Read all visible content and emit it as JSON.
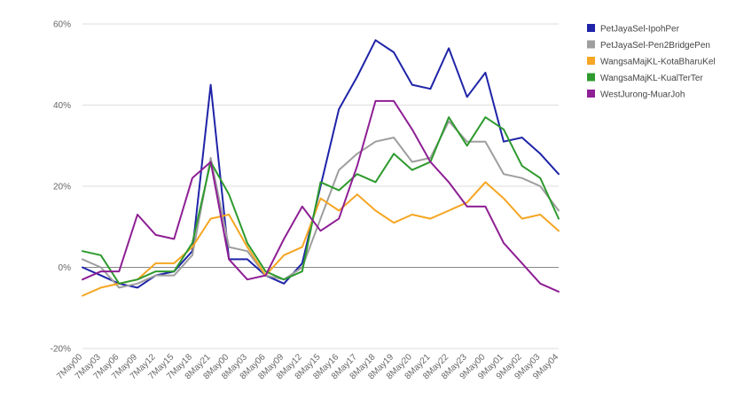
{
  "chart_data": {
    "type": "line",
    "title": "",
    "xlabel": "",
    "ylabel": "",
    "ylim": [
      -20,
      60
    ],
    "yticks": [
      -20,
      0,
      20,
      40,
      60
    ],
    "ytick_labels": [
      "-20%",
      "0%",
      "20%",
      "40%",
      "60%"
    ],
    "grid": true,
    "legend_position": "right",
    "x_labels": [
      "7May00",
      "7May03",
      "7May06",
      "7May09",
      "7May12",
      "7May15",
      "7May18",
      "8May21",
      "8May00",
      "8May03",
      "8May06",
      "8May09",
      "8May12",
      "8May15",
      "8May16",
      "8May17",
      "8May18",
      "8May19",
      "8May20",
      "8May21",
      "8May22",
      "8May23",
      "9May00",
      "9May01",
      "9May02",
      "9May03",
      "9May04"
    ],
    "label_step": 1,
    "series": [
      {
        "name": "PetJayaSel-IpohPer",
        "color": "#1f24a8",
        "values": [
          0,
          -2,
          -4,
          -5,
          -2,
          -1,
          4,
          45,
          2,
          2,
          -2,
          -4,
          1,
          20,
          39,
          47,
          56,
          53,
          45,
          44,
          54,
          42,
          48,
          31,
          32,
          28,
          23
        ]
      },
      {
        "name": "PetJayaSel-Pen2BridgePen",
        "color": "#9e9e9e",
        "values": [
          2,
          0,
          -5,
          -4,
          -2,
          -2,
          3,
          27,
          5,
          4,
          -2,
          -3,
          0,
          12,
          24,
          28,
          31,
          32,
          26,
          27,
          36,
          31,
          31,
          23,
          22,
          20,
          14
        ]
      },
      {
        "name": "WangsaMajKL-KotaBharuKel",
        "color": "#f5a623",
        "values": [
          -7,
          -5,
          -4,
          -3,
          1,
          1,
          5,
          12,
          13,
          5,
          -2,
          3,
          5,
          17,
          14,
          18,
          14,
          11,
          13,
          12,
          14,
          16,
          21,
          17,
          12,
          13,
          9
        ]
      },
      {
        "name": "WangsaMajKL-KualTerTer",
        "color": "#2e9a2e",
        "values": [
          4,
          3,
          -4,
          -3,
          -1,
          -1,
          6,
          26,
          18,
          6,
          -1,
          -3,
          -1,
          21,
          19,
          23,
          21,
          28,
          24,
          26,
          37,
          30,
          37,
          34,
          25,
          22,
          12
        ]
      },
      {
        "name": "WestJurong-MuarJoh",
        "color": "#8e1f94",
        "values": [
          -3,
          -1,
          -1,
          13,
          8,
          7,
          22,
          26,
          2,
          -3,
          -2,
          7,
          15,
          9,
          12,
          25,
          41,
          41,
          34,
          26,
          21,
          15,
          15,
          6,
          1,
          -4,
          -6
        ]
      }
    ]
  }
}
